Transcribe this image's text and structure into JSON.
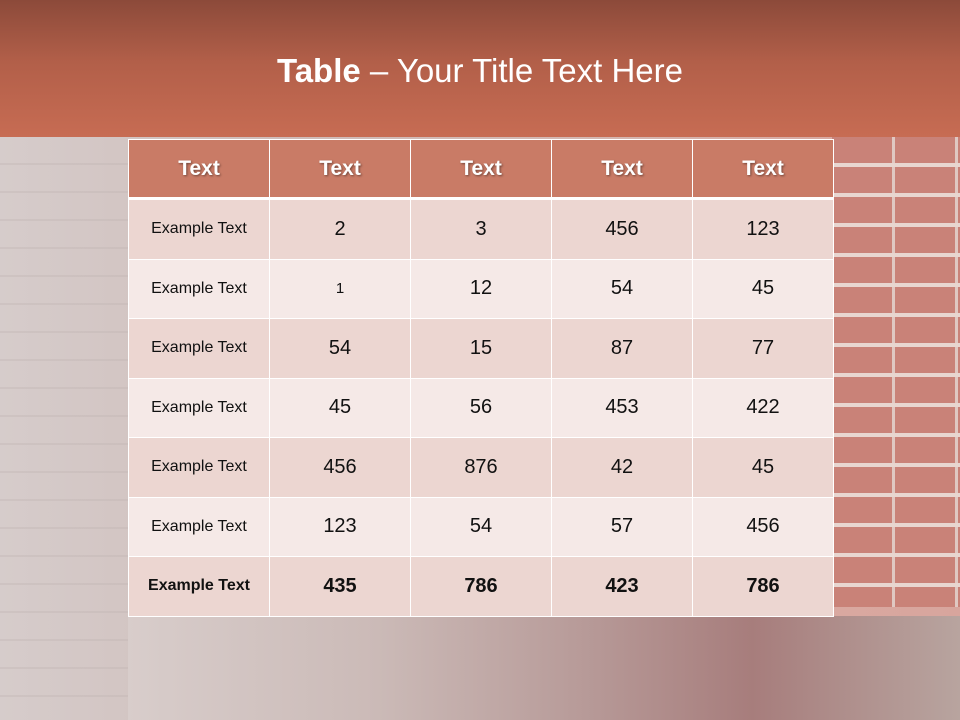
{
  "slide": {
    "title_bold": "Table",
    "title_rest": " – Your Title Text Here"
  },
  "table": {
    "headers": [
      "Text",
      "Text",
      "Text",
      "Text",
      "Text"
    ],
    "rows": [
      [
        "Example Text",
        "2",
        "3",
        "456",
        "123"
      ],
      [
        "Example Text",
        "1",
        "12",
        "54",
        "45"
      ],
      [
        "Example Text",
        "54",
        "15",
        "87",
        "77"
      ],
      [
        "Example Text",
        "45",
        "56",
        "453",
        "422"
      ],
      [
        "Example Text",
        "456",
        "876",
        "42",
        "45"
      ],
      [
        "Example Text",
        "123",
        "54",
        "57",
        "456"
      ],
      [
        "Example Text",
        "435",
        "786",
        "423",
        "786"
      ]
    ]
  },
  "colors": {
    "header": "#c97b66",
    "row_odd": "#ecd6d1",
    "row_even": "#f5e9e7",
    "banner": "#b25f49"
  }
}
